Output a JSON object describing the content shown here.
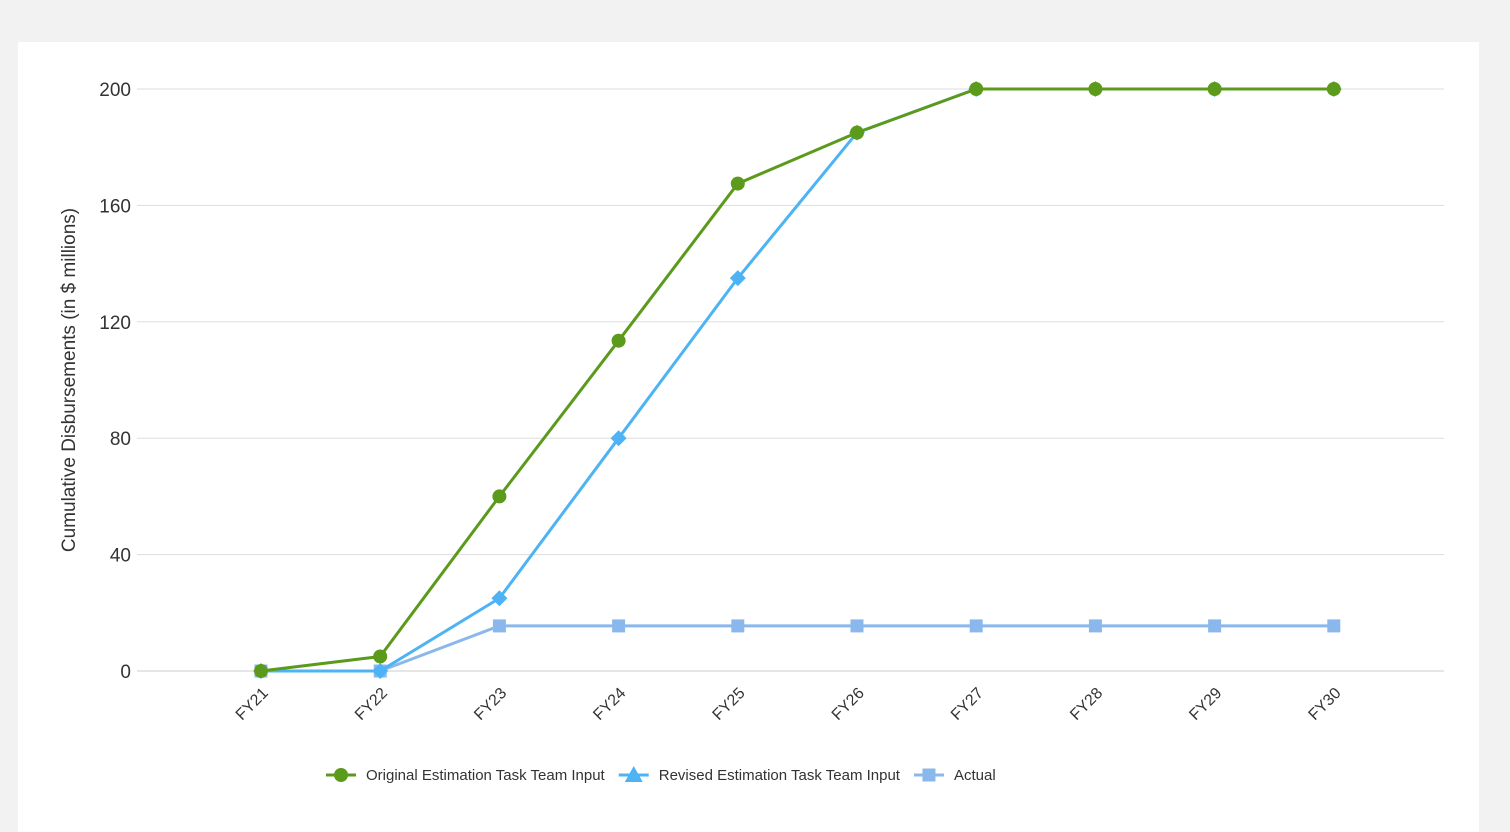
{
  "chart_data": {
    "type": "line",
    "title": "",
    "xlabel": "",
    "ylabel": "Cumulative Disbursements (in $ millions)",
    "categories": [
      "FY21",
      "FY22",
      "FY23",
      "FY24",
      "FY25",
      "FY26",
      "FY27",
      "FY28",
      "FY29",
      "FY30"
    ],
    "ylim": [
      0,
      200
    ],
    "yticks": [
      0,
      40,
      80,
      120,
      160,
      200
    ],
    "grid": true,
    "legend_position": "bottom",
    "series": [
      {
        "name": "Original Estimation Task Team Input",
        "color": "#5b9a1b",
        "marker": "circle",
        "values": [
          0,
          5,
          60,
          113.5,
          167.5,
          185,
          200,
          200,
          200,
          200
        ]
      },
      {
        "name": "Revised Estimation Task Team Input",
        "color": "#4db3f5",
        "marker": "triangle",
        "point_marker": "diamond",
        "values": [
          0,
          0,
          25,
          80,
          135,
          185,
          200,
          200,
          200,
          200
        ]
      },
      {
        "name": "Actual",
        "color": "#8ab8ec",
        "marker": "square",
        "values": [
          0,
          0,
          15.5,
          15.5,
          15.5,
          15.5,
          15.5,
          15.5,
          15.5,
          15.5
        ]
      }
    ]
  }
}
